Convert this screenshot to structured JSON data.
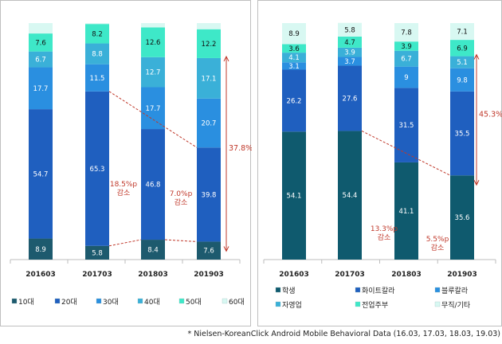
{
  "footnote": "* Nielsen-KoreanClick Android Mobile Behavioral Data (16.03, 17.03, 18.03, 19.03)",
  "chart_data": [
    {
      "type": "stacked-bar",
      "title": "",
      "categories": [
        "201603",
        "201703",
        "201803",
        "201903"
      ],
      "ylim": [
        0,
        100
      ],
      "series": [
        {
          "name": "10대",
          "color": "#1d5a6e",
          "values": [
            8.9,
            5.8,
            8.4,
            7.6
          ]
        },
        {
          "name": "20대",
          "color": "#1f5fbf",
          "values": [
            54.7,
            65.3,
            46.8,
            39.8
          ]
        },
        {
          "name": "30대",
          "color": "#2a8fe0",
          "values": [
            17.7,
            11.5,
            17.7,
            20.7
          ]
        },
        {
          "name": "40대",
          "color": "#3ab0d8",
          "values": [
            6.7,
            8.8,
            12.7,
            17.1
          ]
        },
        {
          "name": "50대",
          "color": "#3ee8c8",
          "values": [
            7.6,
            8.2,
            12.6,
            12.2
          ]
        },
        {
          "name": "60대",
          "color": "#d8f8f2",
          "values": [
            4.4,
            0.4,
            1.8,
            2.6
          ],
          "labels_shown": false
        }
      ],
      "annotations": [
        {
          "text": "18.5%p",
          "text2": "감소"
        },
        {
          "text": "7.0%p",
          "text2": "감소"
        },
        {
          "text": "37.8%"
        }
      ]
    },
    {
      "type": "stacked-bar",
      "title": "",
      "categories": [
        "201603",
        "201703",
        "201803",
        "201903"
      ],
      "ylim": [
        0,
        100
      ],
      "series": [
        {
          "name": "학생",
          "color": "#0f5a6e",
          "values": [
            54.1,
            54.4,
            41.1,
            35.6
          ]
        },
        {
          "name": "화이트칼라",
          "color": "#1f5fbf",
          "values": [
            26.2,
            27.6,
            31.5,
            35.5
          ]
        },
        {
          "name": "블루칼라",
          "color": "#2a8fe0",
          "values": [
            3.1,
            3.7,
            9,
            9.8
          ]
        },
        {
          "name": "자영업",
          "color": "#3ab0d8",
          "values": [
            4.1,
            3.9,
            6.7,
            5.1
          ]
        },
        {
          "name": "전업주부",
          "color": "#3ee8c8",
          "values": [
            3.6,
            4.7,
            3.9,
            6.9
          ]
        },
        {
          "name": "무직/기타",
          "color": "#d8f8f2",
          "values": [
            8.9,
            5.8,
            7.8,
            7.1
          ]
        }
      ],
      "annotations": [
        {
          "text": "13.3%p",
          "text2": "감소"
        },
        {
          "text": "5.5%p",
          "text2": "감소"
        },
        {
          "text": "45.3%"
        }
      ]
    }
  ]
}
